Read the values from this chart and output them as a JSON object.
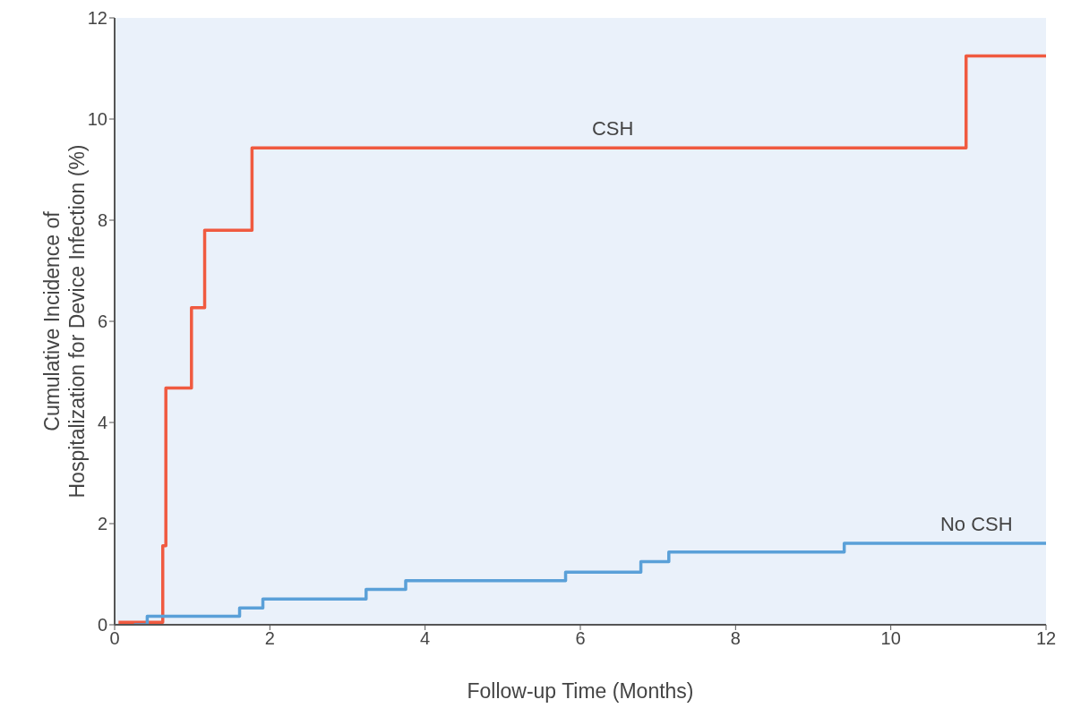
{
  "chart_data": {
    "type": "step",
    "xlabel": "Follow-up Time (Months)",
    "ylabel": "Cumulative Incidence of\nHospitalization for Device Infection (%)",
    "xlim": [
      0,
      12
    ],
    "xticks": [
      0,
      2,
      4,
      6,
      8,
      10,
      12
    ],
    "ylim": [
      0,
      12
    ],
    "yticks": [
      0,
      2,
      4,
      6,
      8,
      10,
      12
    ],
    "grid": false,
    "legend": false,
    "marker": "none",
    "line_style": "solid",
    "series": [
      {
        "name": "CSH",
        "color": "#f05a40",
        "x": [
          0.05,
          0.62,
          0.66,
          0.99,
          1.16,
          1.77,
          10.97,
          12
        ],
        "values": [
          0.05,
          1.56,
          4.68,
          6.27,
          7.8,
          9.43,
          11.25,
          11.25
        ]
      },
      {
        "name": "No CSH",
        "color": "#5aa0d8",
        "x": [
          0.25,
          0.42,
          1.61,
          1.91,
          3.24,
          3.75,
          5.81,
          6.78,
          7.14,
          9.4,
          12
        ],
        "values": [
          0,
          0.17,
          0.33,
          0.51,
          0.7,
          0.87,
          1.04,
          1.25,
          1.44,
          1.61,
          1.61
        ]
      }
    ]
  }
}
